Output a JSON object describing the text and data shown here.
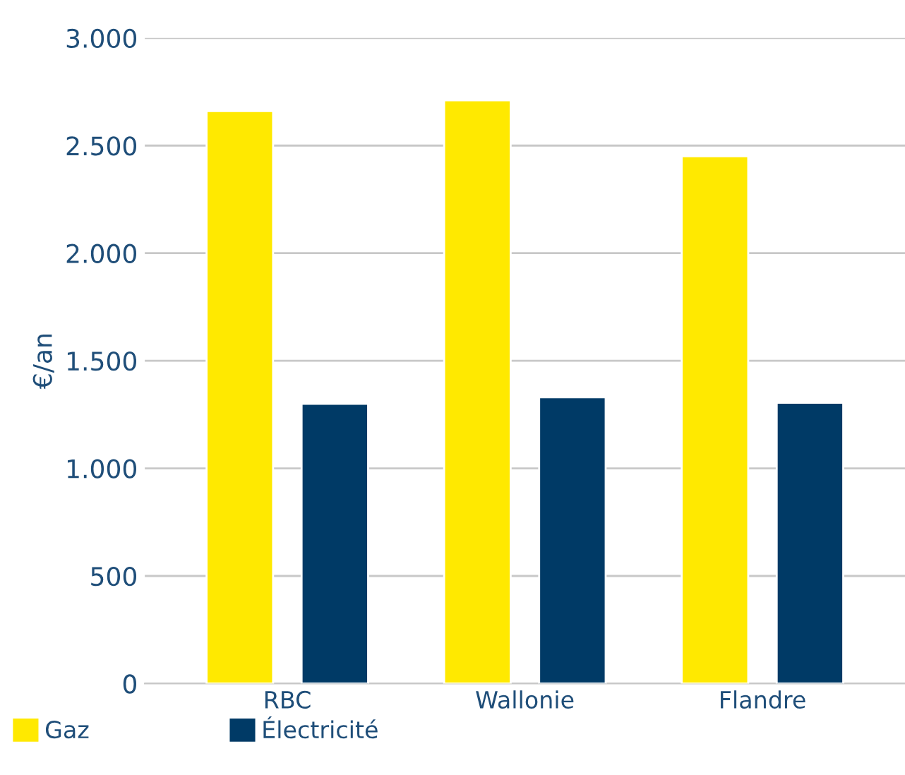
{
  "chart_data": {
    "type": "bar",
    "ylabel": "€/an",
    "categories": [
      "RBC",
      "Wallonie",
      "Flandre"
    ],
    "series": [
      {
        "name": "Gaz",
        "color": "#ffe900",
        "values": [
          2660,
          2710,
          2450
        ]
      },
      {
        "name": "Électricité",
        "color": "#003a66",
        "values": [
          1300,
          1330,
          1305
        ]
      }
    ],
    "ylim": [
      0,
      3000
    ],
    "yticks": [
      {
        "value": 0,
        "label": "0"
      },
      {
        "value": 500,
        "label": "500"
      },
      {
        "value": 1000,
        "label": "1.000"
      },
      {
        "value": 1500,
        "label": "1.500"
      },
      {
        "value": 2000,
        "label": "2.000"
      },
      {
        "value": 2500,
        "label": "2.500"
      },
      {
        "value": 3000,
        "label": "3.000"
      }
    ],
    "grid": "y",
    "legend": "bottom left"
  }
}
